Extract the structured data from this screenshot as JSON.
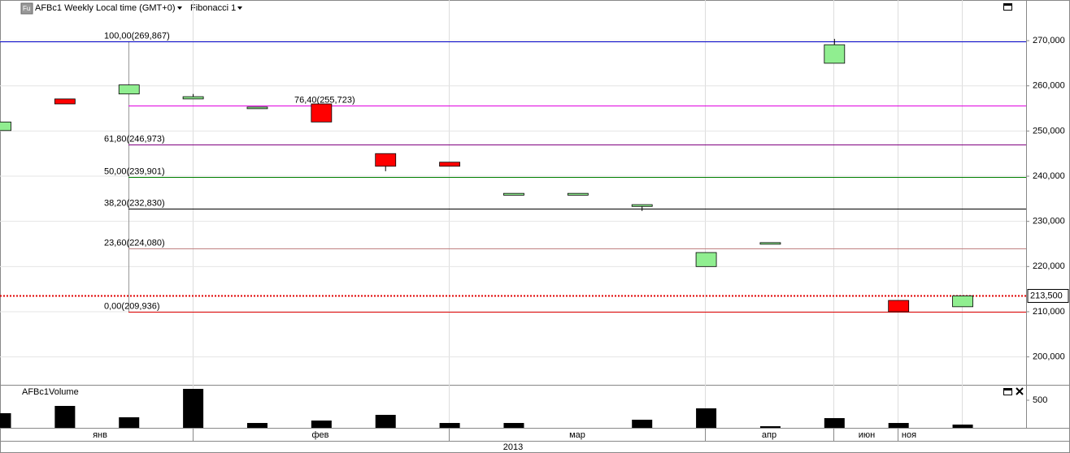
{
  "header": {
    "symbol_info": "AFBc1 Weekly Local time (GMT+0)",
    "indicator": "Fibonacci 1"
  },
  "chart_data": [
    {
      "type": "candlestick",
      "open": [
        250100,
        257100,
        258200,
        257100,
        255000,
        256000,
        245000,
        243100,
        235800,
        235800,
        233300,
        220000,
        225000,
        265000,
        212500,
        211100
      ],
      "high": [
        252000,
        257100,
        260200,
        258200,
        255300,
        256000,
        245000,
        243100,
        236200,
        236200,
        233700,
        223100,
        225300,
        270400,
        212500,
        213500
      ],
      "low": [
        250100,
        256000,
        258200,
        257100,
        255000,
        252000,
        241100,
        242200,
        235800,
        235800,
        232300,
        220000,
        225000,
        265000,
        210000,
        211100
      ],
      "close": [
        252000,
        256000,
        260200,
        257600,
        255300,
        252000,
        242200,
        242200,
        236200,
        236200,
        233700,
        223100,
        225300,
        269100,
        210000,
        213500
      ],
      "up_color": "#90ee90",
      "down_color": "#ff0000",
      "ylim": [
        194000,
        279000
      ],
      "yticks": [
        {
          "value": 200000,
          "label": "200,000"
        },
        {
          "value": 210000,
          "label": "210,000"
        },
        {
          "value": 220000,
          "label": "220,000"
        },
        {
          "value": 230000,
          "label": "230,000"
        },
        {
          "value": 240000,
          "label": "240,000"
        },
        {
          "value": 250000,
          "label": "250,000"
        },
        {
          "value": 260000,
          "label": "260,000"
        },
        {
          "value": 270000,
          "label": "270,000"
        }
      ],
      "grid": true,
      "last_price": {
        "value": 213500,
        "label": "213,500"
      },
      "fibonacci": [
        {
          "label": "100,00(269,867)",
          "value": 269867,
          "color": "#0000cc"
        },
        {
          "label": "76,40(255,723)",
          "value": 255723,
          "color": "#e000e0"
        },
        {
          "label": "61,80(246,973)",
          "value": 246973,
          "color": "#800080"
        },
        {
          "label": "50,00(239,901)",
          "value": 239901,
          "color": "#008000"
        },
        {
          "label": "38,20(232,830)",
          "value": 232830,
          "color": "#000000"
        },
        {
          "label": "23,60(224,080)",
          "value": 224080,
          "color": "#c08080"
        },
        {
          "label": "0,00(209,936)",
          "value": 209936,
          "color": "#dd0000"
        }
      ]
    },
    {
      "type": "bar",
      "title": "AFBc1Volume",
      "values": [
        265,
        397,
        191,
        706,
        88,
        132,
        235,
        88,
        88,
        null,
        147,
        353,
        29,
        176,
        88,
        59
      ],
      "color": "#000000",
      "ylim": [
        0,
        765
      ],
      "yticks": [
        500
      ]
    }
  ],
  "x_axis": {
    "months": [
      "янв",
      "фев",
      "мар",
      "апр",
      "июн",
      "ноя"
    ],
    "year": "2013"
  }
}
